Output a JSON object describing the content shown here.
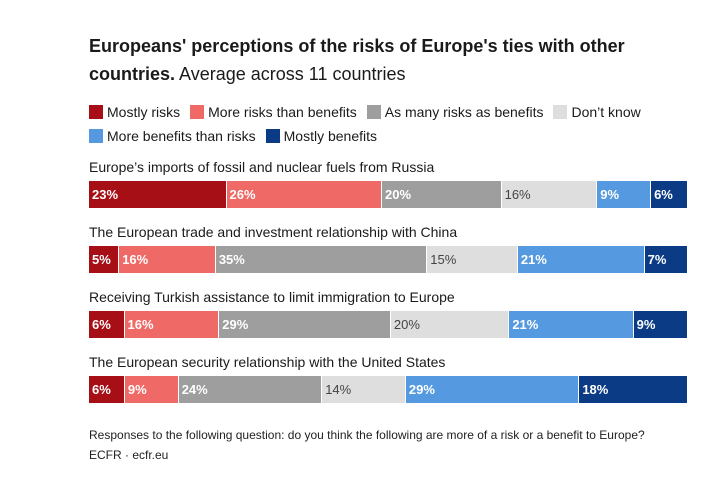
{
  "title": {
    "bold": "Europeans' perceptions of the risks of Europe's ties with other countries.",
    "subtitle": "Average across 11 countries"
  },
  "legend": [
    {
      "label": "Mostly risks",
      "color": "#a50f15"
    },
    {
      "label": "More risks than benefits",
      "color": "#ef6a66"
    },
    {
      "label": "As many risks as benefits",
      "color": "#9e9e9e"
    },
    {
      "label": "Don’t know",
      "color": "#dedede"
    },
    {
      "label": "More benefits than risks",
      "color": "#5599e0"
    },
    {
      "label": "Mostly benefits",
      "color": "#0b3b85"
    }
  ],
  "chart_data": {
    "type": "bar",
    "orientation": "horizontal-stacked-100",
    "categories": [
      "Europe’s imports of fossil and nuclear fuels from Russia",
      "The European trade and investment relationship with China",
      "Receiving Turkish assistance to limit immigration to Europe",
      "The European security relationship with the United States"
    ],
    "series": [
      {
        "name": "Mostly risks",
        "values": [
          23,
          5,
          6,
          6
        ]
      },
      {
        "name": "More risks than benefits",
        "values": [
          26,
          16,
          16,
          9
        ]
      },
      {
        "name": "As many risks as benefits",
        "values": [
          20,
          35,
          29,
          24
        ]
      },
      {
        "name": "Don’t know",
        "values": [
          16,
          15,
          20,
          14
        ]
      },
      {
        "name": "More benefits than risks",
        "values": [
          9,
          21,
          21,
          29
        ]
      },
      {
        "name": "Mostly benefits",
        "values": [
          6,
          7,
          9,
          18
        ]
      }
    ],
    "value_suffix": "%"
  },
  "footer": {
    "note": "Responses to the following question: do you think the following are more of a risk or a benefit to Europe?",
    "source": "ECFR · ecfr.eu"
  }
}
